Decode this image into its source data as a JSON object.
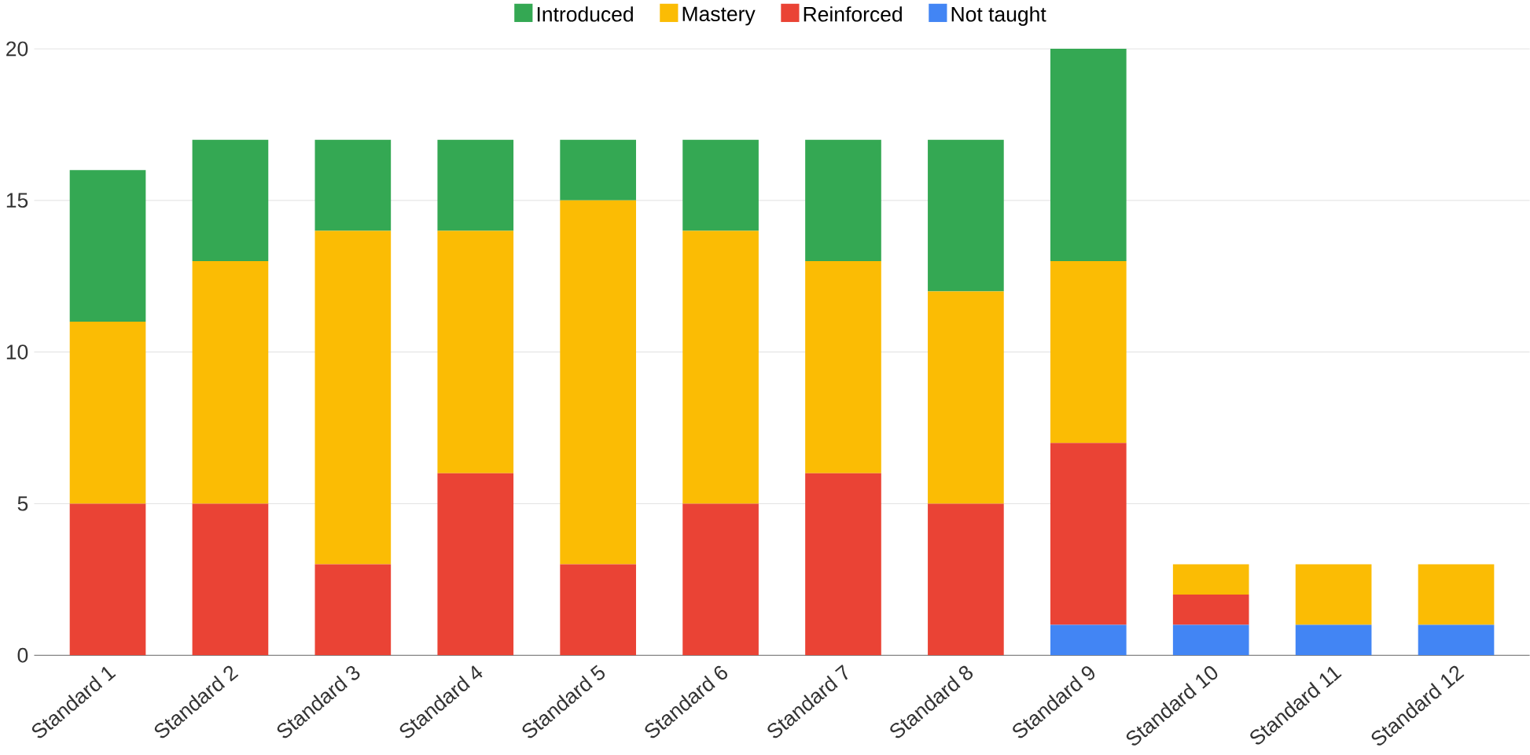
{
  "chart_data": {
    "type": "bar",
    "stacked": true,
    "categories": [
      "Standard 1",
      "Standard 2",
      "Standard 3",
      "Standard 4",
      "Standard 5",
      "Standard 6",
      "Standard 7",
      "Standard 8",
      "Standard 9",
      "Standard 10",
      "Standard 11",
      "Standard 12"
    ],
    "series": [
      {
        "name": "Not taught",
        "color": "#4285f4",
        "values": [
          0,
          0,
          0,
          0,
          0,
          0,
          0,
          0,
          1,
          1,
          1,
          1
        ]
      },
      {
        "name": "Reinforced",
        "color": "#ea4335",
        "values": [
          5,
          5,
          3,
          6,
          3,
          5,
          6,
          5,
          6,
          1,
          0,
          0
        ]
      },
      {
        "name": "Mastery",
        "color": "#fbbc04",
        "values": [
          6,
          8,
          11,
          8,
          12,
          9,
          7,
          7,
          6,
          1,
          2,
          2
        ]
      },
      {
        "name": "Introduced",
        "color": "#34a853",
        "values": [
          5,
          4,
          3,
          3,
          2,
          3,
          4,
          5,
          7,
          0,
          0,
          0
        ]
      }
    ],
    "ylim": [
      0,
      20
    ],
    "yticks": [
      0,
      5,
      10,
      15,
      20
    ],
    "grid": "y",
    "legend": "top"
  }
}
